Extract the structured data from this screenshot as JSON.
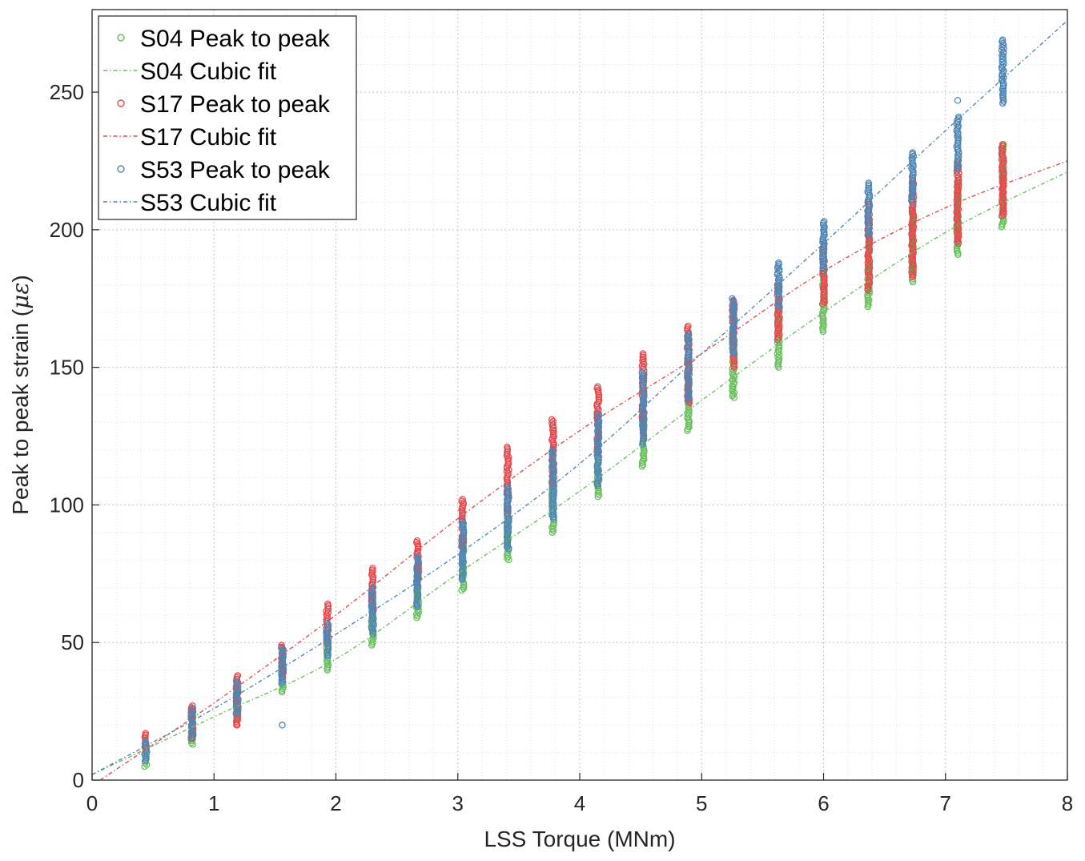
{
  "chart_data": {
    "type": "scatter",
    "xlabel": "LSS Torque (MNm)",
    "ylabel": "Peak to peak strain (",
    "ylabel_symbol": "με",
    "ylabel_close": ")",
    "xlim": [
      0,
      8
    ],
    "ylim": [
      0,
      280
    ],
    "xticks": [
      0,
      1,
      2,
      3,
      4,
      5,
      6,
      7,
      8
    ],
    "yticks": [
      0,
      50,
      100,
      150,
      200,
      250
    ],
    "xtick_labels": [
      "0",
      "1",
      "2",
      "3",
      "4",
      "5",
      "6",
      "7",
      "8"
    ],
    "ytick_labels": [
      "0",
      "50",
      "100",
      "150",
      "200",
      "250"
    ],
    "grid": "major and minor, dotted",
    "legend_position": "top-left",
    "x_levels": [
      0.44,
      0.82,
      1.19,
      1.56,
      1.93,
      2.3,
      2.67,
      3.04,
      3.41,
      3.78,
      4.15,
      4.52,
      4.89,
      5.26,
      5.63,
      6.0,
      6.37,
      6.73,
      7.1,
      7.47
    ],
    "series": [
      {
        "name": "S04 Peak to peak",
        "kind": "scatter",
        "color": "#6abf5e",
        "ranges": [
          [
            5,
            12
          ],
          [
            13,
            24
          ],
          [
            22,
            33
          ],
          [
            32,
            43
          ],
          [
            40,
            53
          ],
          [
            49,
            64
          ],
          [
            59,
            75
          ],
          [
            69,
            85
          ],
          [
            80,
            95
          ],
          [
            90,
            107
          ],
          [
            103,
            120
          ],
          [
            114,
            132
          ],
          [
            127,
            146
          ],
          [
            139,
            160
          ],
          [
            150,
            172
          ],
          [
            163,
            185
          ],
          [
            172,
            197
          ],
          [
            181,
            207
          ],
          [
            191,
            218
          ],
          [
            201,
            231
          ]
        ],
        "outliers": []
      },
      {
        "name": "S04 Cubic fit",
        "kind": "line",
        "color": "#6abf5e",
        "x": [
          0,
          1,
          2,
          3,
          4,
          5,
          6,
          7,
          8
        ],
        "y": [
          2,
          23,
          44,
          75,
          105,
          138,
          170,
          199,
          221
        ]
      },
      {
        "name": "S17 Peak to peak",
        "kind": "scatter",
        "color": "#e44a4d",
        "ranges": [
          [
            12,
            17
          ],
          [
            15,
            27
          ],
          [
            20,
            38
          ],
          [
            37,
            49
          ],
          [
            50,
            64
          ],
          [
            62,
            77
          ],
          [
            72,
            87
          ],
          [
            84,
            102
          ],
          [
            97,
            121
          ],
          [
            108,
            131
          ],
          [
            119,
            143
          ],
          [
            126,
            155
          ],
          [
            137,
            165
          ],
          [
            150,
            174
          ],
          [
            160,
            180
          ],
          [
            173,
            195
          ],
          [
            178,
            210
          ],
          [
            183,
            218
          ],
          [
            195,
            225
          ],
          [
            205,
            231
          ]
        ],
        "outliers": [
          [
            1.19,
            20
          ]
        ]
      },
      {
        "name": "S17 Cubic fit",
        "kind": "line",
        "color": "#e44a4d",
        "x": [
          0,
          1,
          2,
          3,
          4,
          5,
          6,
          7,
          8
        ],
        "y": [
          -2,
          28,
          60,
          95,
          127,
          155,
          185,
          208,
          225
        ]
      },
      {
        "name": "S53 Peak to peak",
        "kind": "scatter",
        "color": "#4f86b4",
        "ranges": [
          [
            7,
            14
          ],
          [
            15,
            26
          ],
          [
            24,
            36
          ],
          [
            35,
            48
          ],
          [
            45,
            57
          ],
          [
            53,
            70
          ],
          [
            63,
            81
          ],
          [
            73,
            94
          ],
          [
            84,
            107
          ],
          [
            95,
            120
          ],
          [
            107,
            133
          ],
          [
            122,
            148
          ],
          [
            138,
            162
          ],
          [
            155,
            175
          ],
          [
            172,
            188
          ],
          [
            185,
            203
          ],
          [
            198,
            217
          ],
          [
            210,
            228
          ],
          [
            222,
            241
          ],
          [
            246,
            269
          ]
        ],
        "outliers": [
          [
            1.56,
            20
          ],
          [
            7.1,
            247
          ]
        ]
      },
      {
        "name": "S53 Cubic fit",
        "kind": "line",
        "color": "#4f86b4",
        "x": [
          0,
          1,
          2,
          3,
          4,
          5,
          6,
          7,
          8
        ],
        "y": [
          2,
          26,
          53,
          82,
          115,
          155,
          195,
          236,
          276
        ]
      }
    ]
  }
}
